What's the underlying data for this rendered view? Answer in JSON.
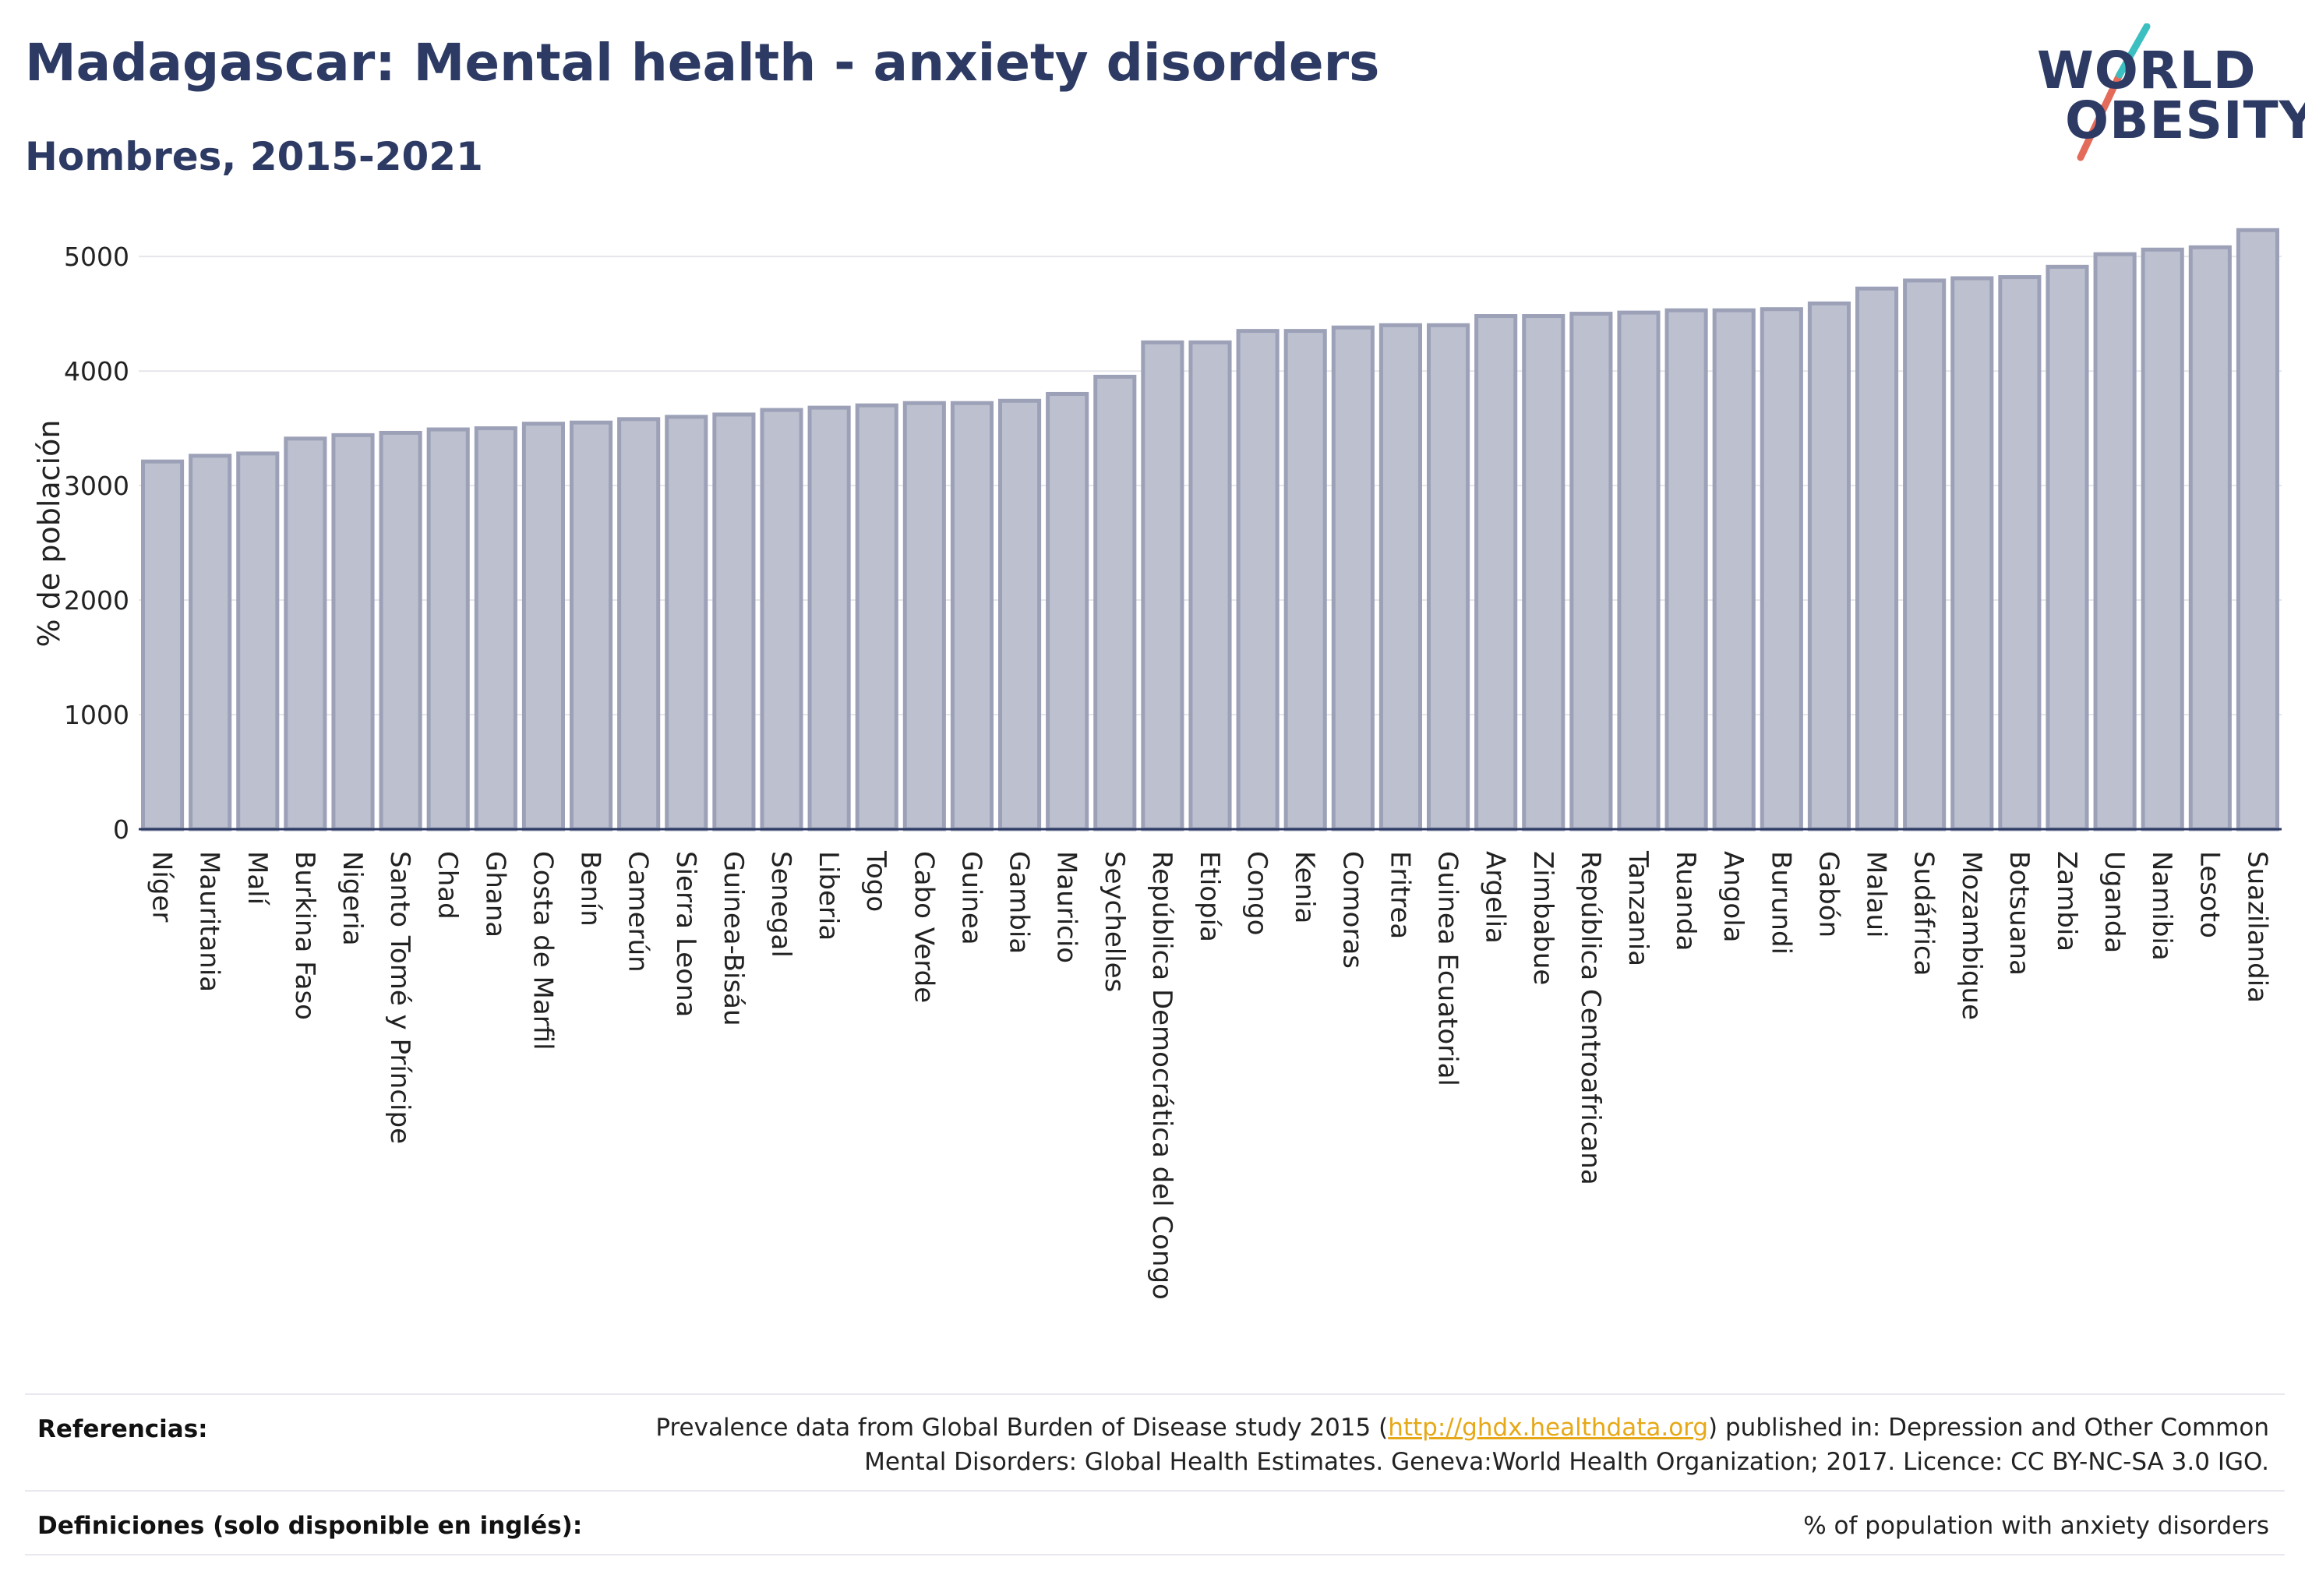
{
  "header": {
    "title": "Madagascar: Mental health - anxiety disorders",
    "subtitle": "Hombres, 2015-2021"
  },
  "logo": {
    "line1": "WORLD",
    "line2": "OBESITY"
  },
  "chart_data": {
    "type": "bar",
    "ylabel": "% de población",
    "ylim": [
      0,
      5300
    ],
    "yticks": [
      0,
      1000,
      2000,
      3000,
      4000,
      5000
    ],
    "grid": true,
    "bar_color": "#bcc0cf",
    "bar_edge_color": "#9ca1b8",
    "categories": [
      "Níger",
      "Mauritania",
      "Malí",
      "Burkina Faso",
      "Nigeria",
      "Santo Tomé y Príncipe",
      "Chad",
      "Ghana",
      "Costa de Marfil",
      "Benín",
      "Camerún",
      "Sierra Leona",
      "Guinea-Bisáu",
      "Senegal",
      "Liberia",
      "Togo",
      "Cabo Verde",
      "Guinea",
      "Gambia",
      "Mauricio",
      "Seychelles",
      "República Democrática del Congo",
      "Etiopía",
      "Congo",
      "Kenia",
      "Comoras",
      "Eritrea",
      "Guinea Ecuatorial",
      "Argelia",
      "Zimbabue",
      "República Centroafricana",
      "Tanzania",
      "Ruanda",
      "Angola",
      "Burundi",
      "Gabón",
      "Malaui",
      "Sudáfrica",
      "Mozambique",
      "Botsuana",
      "Zambia",
      "Uganda",
      "Namibia",
      "Lesoto",
      "Suazilandia"
    ],
    "values": [
      3210,
      3260,
      3280,
      3410,
      3440,
      3460,
      3490,
      3500,
      3540,
      3550,
      3580,
      3600,
      3620,
      3660,
      3680,
      3700,
      3720,
      3720,
      3740,
      3800,
      3950,
      4250,
      4250,
      4350,
      4350,
      4380,
      4400,
      4400,
      4480,
      4480,
      4500,
      4510,
      4530,
      4530,
      4540,
      4590,
      4720,
      4790,
      4810,
      4820,
      4910,
      5020,
      5060,
      5080,
      5230
    ]
  },
  "footer": {
    "references_label": "Referencias:",
    "references_text_before": "Prevalence data from Global Burden of Disease study 2015 (",
    "references_link": "http://ghdx.healthdata.org",
    "references_text_line1_after": ") published in: Depression and Other Common",
    "references_text_line2": "Mental Disorders: Global Health Estimates. Geneva:World Health Organization; 2017. Licence: CC BY-NC-SA 3.0 IGO.",
    "definitions_label": "Definiciones (solo disponible en inglés):",
    "definitions_text": "% of population with anxiety disorders"
  }
}
